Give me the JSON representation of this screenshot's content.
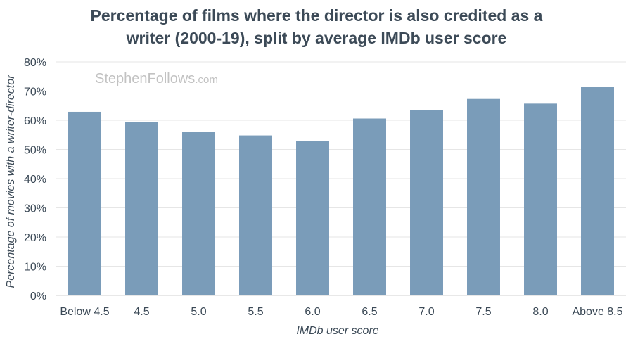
{
  "chart_data": {
    "type": "bar",
    "title_lines": [
      "Percentage of films where the director is also credited as a",
      "writer (2000-19), split by average IMDb user score"
    ],
    "xlabel": "IMDb user score",
    "ylabel": "Percentage of movies with a writer-director",
    "categories": [
      "Below 4.5",
      "4.5",
      "5.0",
      "5.5",
      "6.0",
      "6.5",
      "7.0",
      "7.5",
      "8.0",
      "Above 8.5"
    ],
    "values": [
      62.9,
      59.3,
      56.0,
      54.8,
      52.9,
      60.6,
      63.5,
      67.3,
      65.7,
      71.4
    ],
    "ylim": [
      0,
      80
    ],
    "yticks": [
      "0%",
      "10%",
      "20%",
      "30%",
      "40%",
      "50%",
      "60%",
      "70%",
      "80%"
    ],
    "grid": true,
    "bar_color": "#7a9cb9",
    "watermark_main": "StephenFollows",
    "watermark_suffix": ".com"
  }
}
